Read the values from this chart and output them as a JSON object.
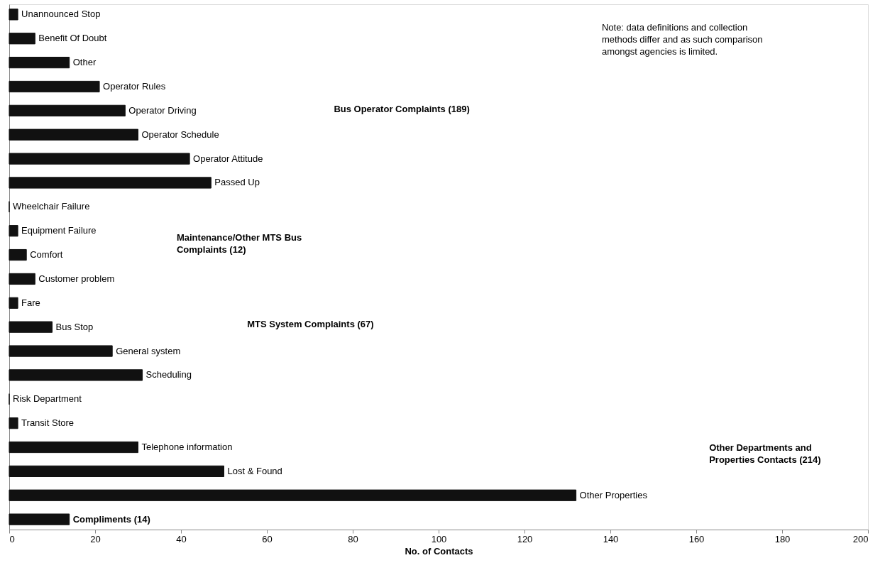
{
  "chart_data": {
    "type": "bar",
    "orientation": "horizontal",
    "xlabel": "No. of Contacts",
    "categories": [
      "Unannounced Stop",
      "Benefit Of Doubt",
      "Other",
      "Operator Rules",
      "Operator Driving",
      "Operator Schedule",
      "Operator Attitude",
      "Passed Up",
      "Wheelchair Failure",
      "Equipment Failure",
      "Comfort",
      "Customer problem",
      "Fare",
      "Bus Stop",
      "General system",
      "Scheduling",
      "Risk Department",
      "Transit Store",
      "Telephone information",
      "Lost & Found",
      "Other Properties",
      "Compliments (14)"
    ],
    "values": [
      2,
      6,
      14,
      21,
      27,
      30,
      42,
      47,
      0,
      2,
      4,
      6,
      2,
      10,
      24,
      31,
      0,
      2,
      30,
      50,
      132,
      14
    ],
    "color": "#111111",
    "xlim": [
      0,
      200
    ],
    "xticks": [
      0,
      20,
      40,
      60,
      80,
      100,
      120,
      140,
      160,
      180,
      200
    ],
    "grid": false,
    "annotations": [
      "Bus Operator Complaints (189)",
      "Maintenance/Other MTS Bus\nComplaints (12)",
      "MTS System Complaints (67)",
      "Other Departments and\nProperties Contacts (214)",
      "Note: data definitions and collection\nmethods differ and as such comparison\namongst agencies is limited."
    ]
  }
}
